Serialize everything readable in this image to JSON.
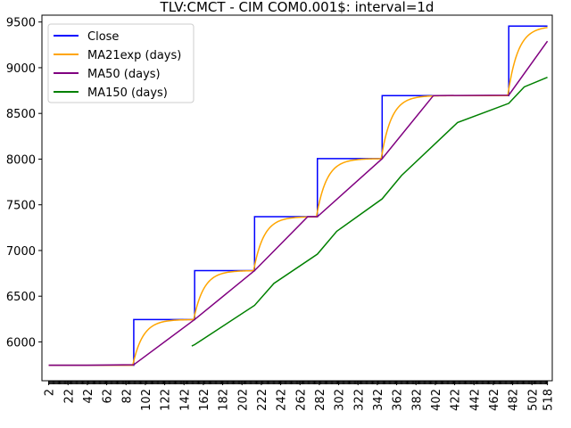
{
  "chart_data": {
    "type": "line",
    "title": "TLV:CMCT - CIM COM0.001$: interval=1d",
    "xlabel": "",
    "ylabel": "",
    "xlim": [
      -5,
      523
    ],
    "ylim": [
      5575,
      9575
    ],
    "x_ticks": [
      2,
      22,
      42,
      62,
      82,
      102,
      122,
      142,
      162,
      182,
      202,
      222,
      242,
      262,
      282,
      302,
      322,
      342,
      362,
      382,
      402,
      422,
      442,
      462,
      482,
      502,
      518
    ],
    "y_ticks": [
      6000,
      6500,
      7000,
      7500,
      8000,
      8500,
      9000,
      9500
    ],
    "grid": false,
    "legend_position": "top-left",
    "series": [
      {
        "name": "Close",
        "color": "#0000ff",
        "kind": "step",
        "x": [
          2,
          90,
          90,
          153,
          153,
          215,
          215,
          280,
          280,
          347,
          347,
          478,
          478,
          518
        ],
        "values": [
          5745,
          5745,
          6245,
          6245,
          6780,
          6780,
          7370,
          7370,
          8005,
          8005,
          8695,
          8695,
          9455,
          9455
        ]
      },
      {
        "name": "MA21exp (days)",
        "color": "#ffa500",
        "kind": "ema",
        "alpha": 0.0909,
        "x_start": 2,
        "x_end": 518
      },
      {
        "name": "MA50 (days)",
        "color": "#800080",
        "kind": "line",
        "x": [
          2,
          42,
          90,
          153,
          215,
          270,
          280,
          347,
          400,
          478,
          518
        ],
        "values": [
          5745,
          5745,
          5750,
          6245,
          6780,
          7370,
          7370,
          8005,
          8695,
          8700,
          9290
        ]
      },
      {
        "name": "MA150 (days)",
        "color": "#008000",
        "kind": "line",
        "x": [
          150,
          153,
          215,
          235,
          280,
          300,
          347,
          367,
          425,
          478,
          494,
          518
        ],
        "values": [
          5955,
          5970,
          6400,
          6640,
          6960,
          7210,
          7565,
          7820,
          8400,
          8610,
          8790,
          8895
        ]
      }
    ]
  }
}
